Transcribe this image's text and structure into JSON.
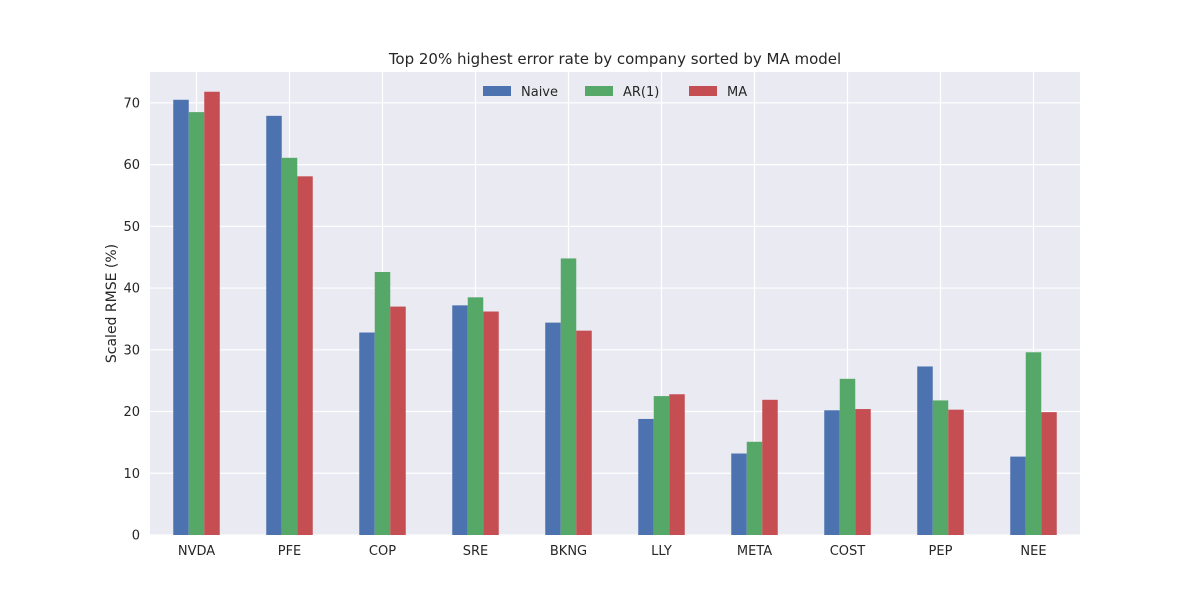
{
  "chart_data": {
    "type": "bar",
    "title": "Top 20% highest error rate by company sorted by MA model",
    "xlabel": "",
    "ylabel": "Scaled RMSE (%)",
    "ylim": [
      0,
      75
    ],
    "yticks": [
      0,
      10,
      20,
      30,
      40,
      50,
      60,
      70
    ],
    "grid": true,
    "legend": "top-center",
    "categories": [
      "NVDA",
      "PFE",
      "COP",
      "SRE",
      "BKNG",
      "LLY",
      "META",
      "COST",
      "PEP",
      "NEE"
    ],
    "series": [
      {
        "name": "Naive",
        "color": "#4c72b0",
        "values": [
          70.5,
          67.9,
          32.8,
          37.2,
          34.4,
          18.8,
          13.2,
          20.2,
          27.3,
          12.7
        ]
      },
      {
        "name": "AR(1)",
        "color": "#55a868",
        "values": [
          68.5,
          61.1,
          42.6,
          38.5,
          44.8,
          22.5,
          15.1,
          25.3,
          21.8,
          29.6
        ]
      },
      {
        "name": "MA",
        "color": "#c44e52",
        "values": [
          71.8,
          58.1,
          37.0,
          36.2,
          33.1,
          22.8,
          21.9,
          20.4,
          20.3,
          19.9
        ]
      }
    ]
  }
}
